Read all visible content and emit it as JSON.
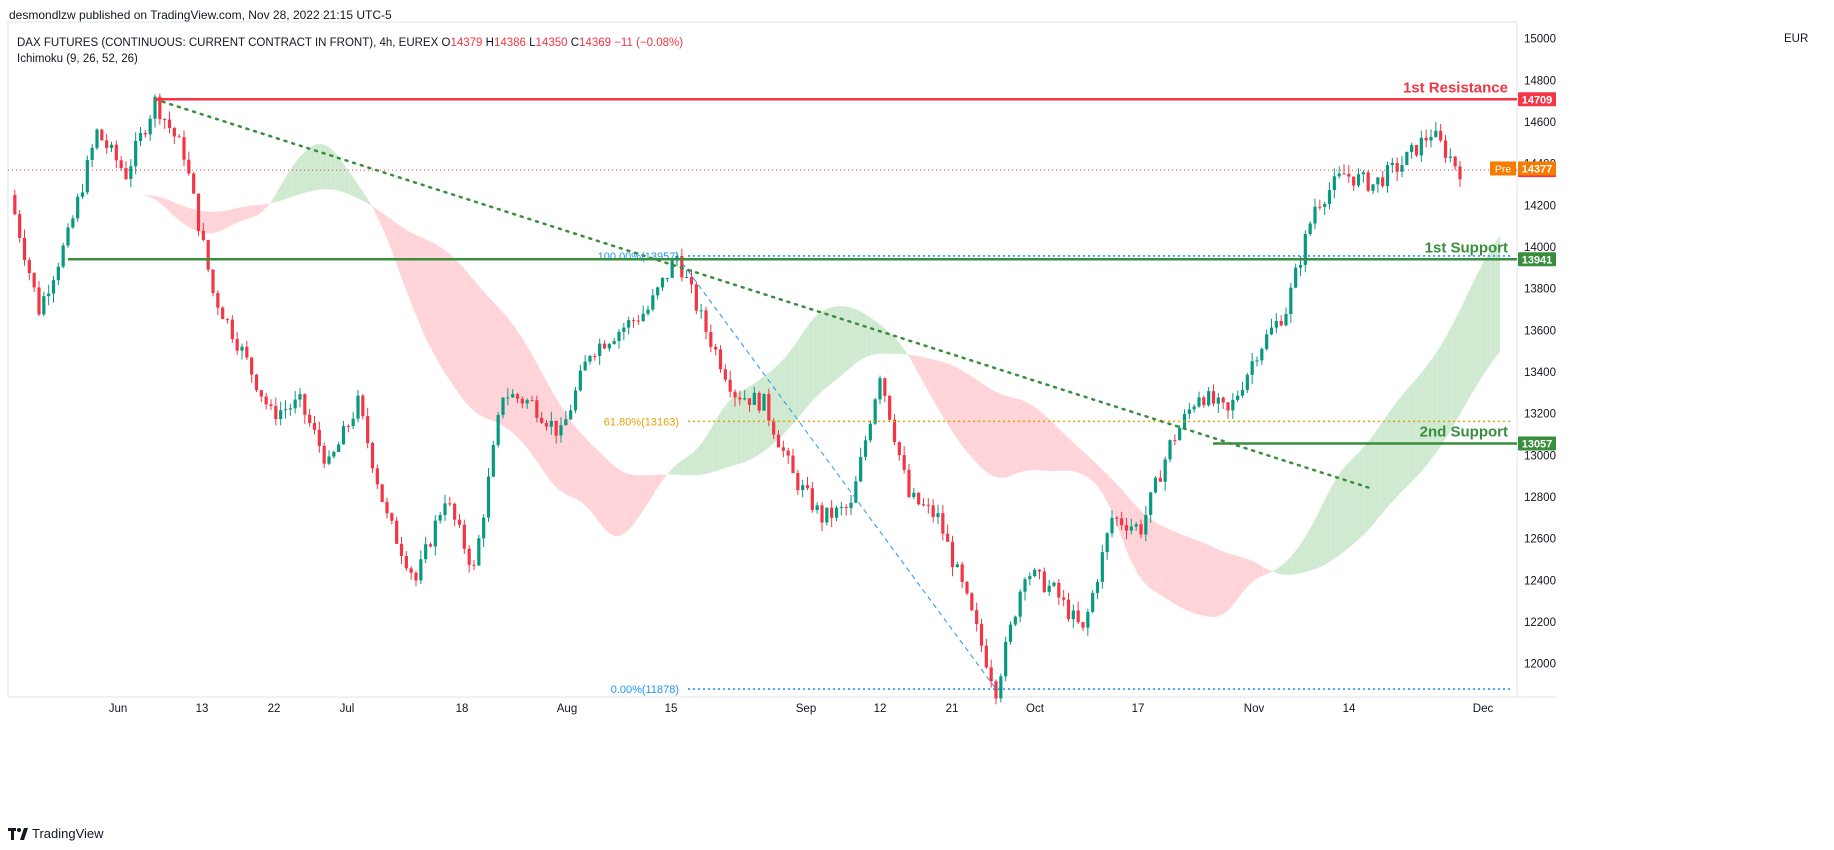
{
  "publisher_line": "desmondlzw published on TradingView.com, Nov 28, 2022 21:15 UTC-5",
  "legend": {
    "symbol": "DAX FUTURES (CONTINUOUS: CURRENT CONTRACT IN FRONT), 4h, EUREX",
    "open_label": "O",
    "open": "14379",
    "high_label": "H",
    "high": "14386",
    "low_label": "L",
    "low": "14350",
    "close_label": "C",
    "close": "14369",
    "change": "−11 (−0.08%)",
    "indicator": "Ichimoku (9, 26, 52, 26)"
  },
  "currency": "EUR",
  "brand": "TradingView",
  "colors": {
    "up": "#089981",
    "down": "#f23645",
    "resistance": "#f23645",
    "support": "#388e3c",
    "cloud_bull": "#c8e6c9",
    "cloud_bear": "#ffcdd2",
    "fib_blue": "#2196f3",
    "fib_gold": "#e0a400",
    "pre": "#f57c00",
    "trend": "#388e3c"
  },
  "chart_data": {
    "type": "candlestick",
    "instrument": "DAX FUTURES (CONTINUOUS: CURRENT CONTRACT IN FRONT)",
    "timeframe": "4h",
    "y_axis": {
      "ticks": [
        12000,
        12200,
        12400,
        12600,
        12800,
        13000,
        13200,
        13400,
        13600,
        13800,
        14000,
        14200,
        14400,
        14600,
        14800,
        15000
      ],
      "range": [
        11840,
        15080
      ],
      "unit": "EUR"
    },
    "x_axis": {
      "ticks": [
        "Jun",
        "13",
        "22",
        "Jul",
        "18",
        "Aug",
        "15",
        "Sep",
        "12",
        "21",
        "Oct",
        "17",
        "Nov",
        "14",
        "Dec"
      ]
    },
    "price_path": [
      {
        "date": "May 20",
        "price": 14250
      },
      {
        "date": "May 24",
        "price": 13700
      },
      {
        "date": "May 27",
        "price": 14050
      },
      {
        "date": "May 31",
        "price": 14550
      },
      {
        "date": "Jun 3",
        "price": 14350
      },
      {
        "date": "Jun 6",
        "price": 14700
      },
      {
        "date": "Jun 9",
        "price": 14450
      },
      {
        "date": "Jun 13",
        "price": 13780
      },
      {
        "date": "Jun 14",
        "price": 13500
      },
      {
        "date": "Jun 16",
        "price": 13200
      },
      {
        "date": "Jun 20",
        "price": 13250
      },
      {
        "date": "Jun 23",
        "price": 12950
      },
      {
        "date": "Jun 28",
        "price": 13250
      },
      {
        "date": "Jul 1",
        "price": 12700
      },
      {
        "date": "Jul 6",
        "price": 12400
      },
      {
        "date": "Jul 11",
        "price": 12800
      },
      {
        "date": "Jul 14",
        "price": 12450
      },
      {
        "date": "Jul 19",
        "price": 13300
      },
      {
        "date": "Jul 22",
        "price": 13250
      },
      {
        "date": "Jul 27",
        "price": 13100
      },
      {
        "date": "Aug 1",
        "price": 13500
      },
      {
        "date": "Aug 5",
        "price": 13600
      },
      {
        "date": "Aug 10",
        "price": 13700
      },
      {
        "date": "Aug 16",
        "price": 13957
      },
      {
        "date": "Aug 18",
        "price": 13600
      },
      {
        "date": "Aug 22",
        "price": 13300
      },
      {
        "date": "Aug 25",
        "price": 13250
      },
      {
        "date": "Aug 29",
        "price": 12900
      },
      {
        "date": "Sep 2",
        "price": 12700
      },
      {
        "date": "Sep 6",
        "price": 12750
      },
      {
        "date": "Sep 12",
        "price": 13400
      },
      {
        "date": "Sep 16",
        "price": 12800
      },
      {
        "date": "Sep 21",
        "price": 12700
      },
      {
        "date": "Sep 26",
        "price": 12300
      },
      {
        "date": "Sep 29",
        "price": 11878
      },
      {
        "date": "Oct 4",
        "price": 12450
      },
      {
        "date": "Oct 7",
        "price": 12350
      },
      {
        "date": "Oct 12",
        "price": 12150
      },
      {
        "date": "Oct 17",
        "price": 12700
      },
      {
        "date": "Oct 21",
        "price": 12650
      },
      {
        "date": "Oct 25",
        "price": 13050
      },
      {
        "date": "Oct 28",
        "price": 13300
      },
      {
        "date": "Nov 3",
        "price": 13200
      },
      {
        "date": "Nov 7",
        "price": 13500
      },
      {
        "date": "Nov 10",
        "price": 13700
      },
      {
        "date": "Nov 10b",
        "price": 14200
      },
      {
        "date": "Nov 15",
        "price": 14350
      },
      {
        "date": "Nov 18",
        "price": 14300
      },
      {
        "date": "Nov 23",
        "price": 14400
      },
      {
        "date": "Nov 25",
        "price": 14550
      },
      {
        "date": "Nov 28",
        "price": 14369
      }
    ],
    "levels": [
      {
        "label": "1st Resistance",
        "value": 14709,
        "color": "#f23645"
      },
      {
        "label": "1st Support",
        "value": 13941,
        "color": "#388e3c"
      },
      {
        "label": "2nd Support",
        "value": 13057,
        "color": "#388e3c"
      }
    ],
    "fibonacci": [
      {
        "label": "100.00%(13957)",
        "value": 13957,
        "color": "#2196f3"
      },
      {
        "label": "61.80%(13163)",
        "value": 13163,
        "color": "#e0a400"
      },
      {
        "label": "0.00%(11878)",
        "value": 11878,
        "color": "#2196f3"
      }
    ],
    "current_price": {
      "label": "14369",
      "value": 14369
    },
    "pre_market": {
      "tag": "Pre",
      "label": "14377",
      "value": 14377
    },
    "price_labels": [
      "14709",
      "13941",
      "13057"
    ],
    "trendline": {
      "from": {
        "date": "Jun 6",
        "price": 14709
      },
      "to": {
        "date": "Nov 16",
        "price": 12840
      }
    },
    "ichimoku": {
      "params": "9, 26, 52, 26"
    }
  }
}
